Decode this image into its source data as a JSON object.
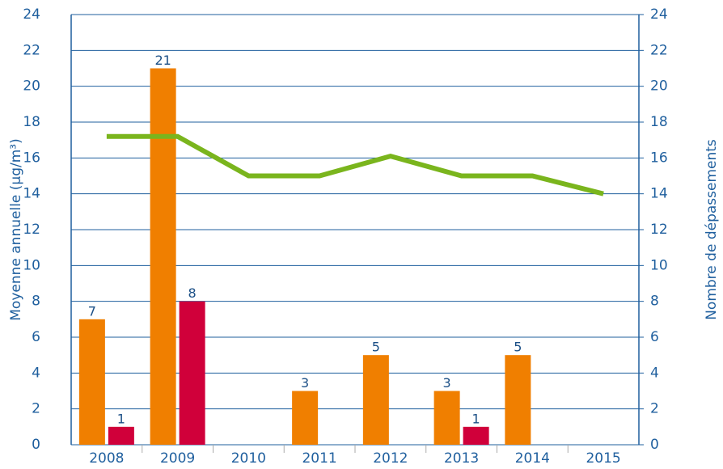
{
  "chart_data": {
    "type": "bar",
    "y_label": "Moyenne annuelle (µg/m³)",
    "y2_label": "Nombre de dépassements",
    "categories": [
      "2008",
      "2009",
      "2010",
      "2011",
      "2012",
      "2013",
      "2014",
      "2015"
    ],
    "series": [
      {
        "type": "bar",
        "axis": "y2",
        "color": "#f07f00",
        "values": [
          7,
          21,
          null,
          3,
          5,
          3,
          5,
          null
        ]
      },
      {
        "type": "bar",
        "axis": "y2",
        "color": "#d0003a",
        "values": [
          1,
          8,
          null,
          null,
          null,
          1,
          null,
          null
        ]
      },
      {
        "type": "line",
        "color": "#7ab51d",
        "values": [
          17.2,
          17.2,
          15,
          15,
          16.1,
          15,
          15,
          14
        ]
      }
    ],
    "ylim": [
      0,
      24
    ],
    "yticks": [
      0,
      2,
      4,
      6,
      8,
      10,
      12,
      14,
      16,
      18,
      20,
      22,
      24
    ],
    "y2lim": [
      0,
      24
    ],
    "y2ticks": [
      0,
      2,
      4,
      6,
      8,
      10,
      12,
      14,
      16,
      18,
      20,
      22,
      24
    ],
    "grid": true
  }
}
